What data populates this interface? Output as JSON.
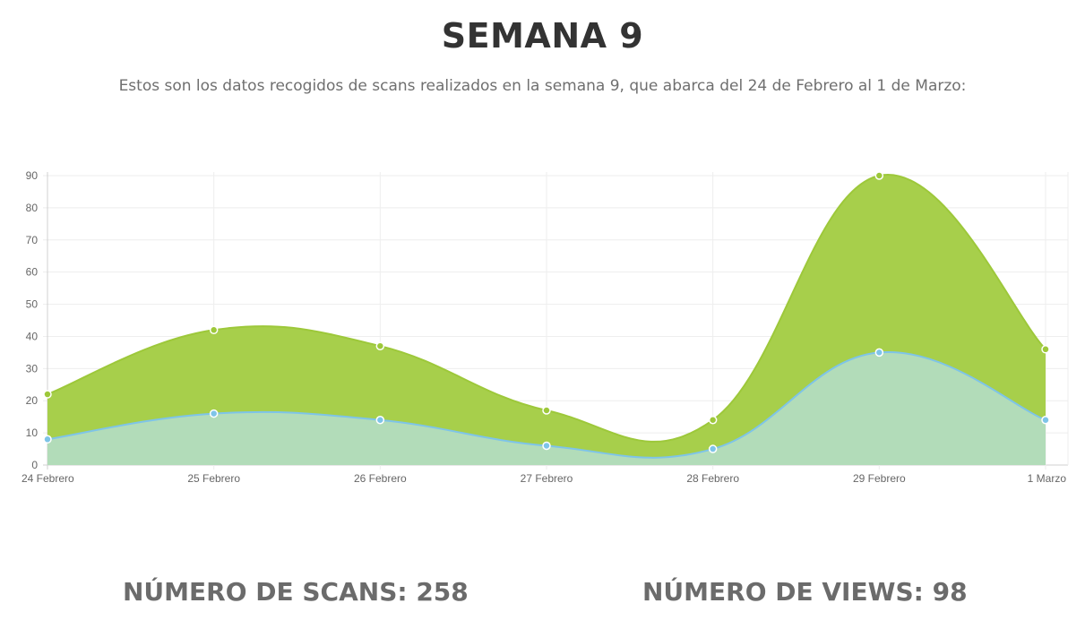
{
  "header": {
    "title": "SEMANA 9",
    "subtitle": "Estos son los datos recogidos de scans realizados en la semana 9, que abarca del 24 de Febrero al 1 de Marzo:"
  },
  "chart_data": {
    "type": "area",
    "title": "",
    "xlabel": "",
    "ylabel": "",
    "categories": [
      "24 Febrero",
      "25 Febrero",
      "26 Febrero",
      "27 Febrero",
      "28 Febrero",
      "29 Febrero",
      "1 Marzo"
    ],
    "ylim": [
      0,
      90
    ],
    "yticks": [
      0,
      10,
      20,
      30,
      40,
      50,
      60,
      70,
      80,
      90
    ],
    "grid": true,
    "legend": "none",
    "series": [
      {
        "values": [
          22,
          42,
          37,
          17,
          14,
          90,
          36
        ],
        "color": "#9dc83a",
        "fill": "#a7cf4b"
      },
      {
        "values": [
          8,
          16,
          14,
          6,
          5,
          35,
          14
        ],
        "color": "#7ec4e8",
        "fill": "#b2dcb9"
      }
    ]
  },
  "stats": {
    "scans_label": "NÚMERO DE SCANS: 258",
    "views_label": "NÚMERO DE VIEWS: 98"
  }
}
